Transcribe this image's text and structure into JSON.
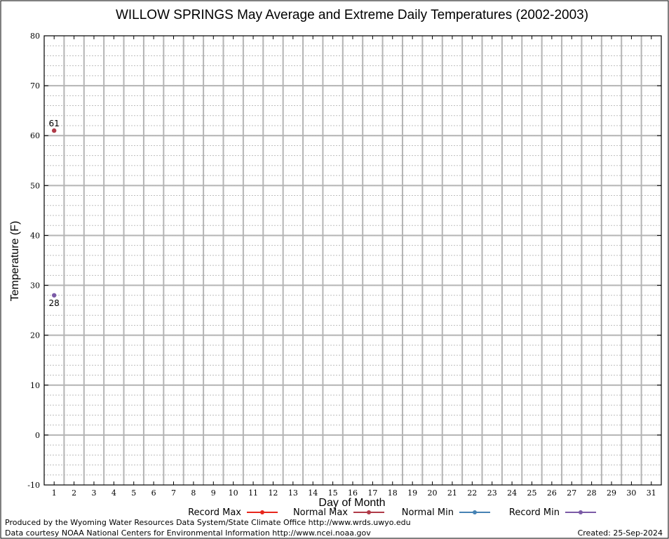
{
  "chart_data": {
    "type": "line",
    "title": "WILLOW SPRINGS May Average and Extreme Daily Temperatures (2002-2003)",
    "xlabel": "Day of Month",
    "ylabel": "Temperature (F)",
    "xlim": [
      0.5,
      31.5
    ],
    "ylim": [
      -10,
      80
    ],
    "x_ticks": [
      1,
      2,
      3,
      4,
      5,
      6,
      7,
      8,
      9,
      10,
      11,
      12,
      13,
      14,
      15,
      16,
      17,
      18,
      19,
      20,
      21,
      22,
      23,
      24,
      25,
      26,
      27,
      28,
      29,
      30,
      31
    ],
    "y_ticks": [
      -10,
      0,
      10,
      20,
      30,
      40,
      50,
      60,
      70,
      80
    ],
    "grid": true,
    "legend_position": "bottom",
    "series": [
      {
        "name": "Record Max",
        "color": "#e8261c",
        "points": []
      },
      {
        "name": "Normal Max",
        "color": "#b03a48",
        "points": [
          {
            "x": 1,
            "y": 61,
            "label": "61",
            "label_pos": "above"
          }
        ]
      },
      {
        "name": "Normal Min",
        "color": "#4682b4",
        "points": []
      },
      {
        "name": "Record Min",
        "color": "#7b5aa6",
        "points": [
          {
            "x": 1,
            "y": 28,
            "label": "28",
            "label_pos": "below"
          }
        ]
      }
    ]
  },
  "footer": {
    "produced_by": "Produced by the Wyoming Water Resources Data System/State Climate Office http://www.wrds.uwyo.edu",
    "data_courtesy": "Data courtesy NOAA National Centers for Environmental Information http://www.ncei.noaa.gov",
    "created": "Created:  25-Sep-2024"
  }
}
